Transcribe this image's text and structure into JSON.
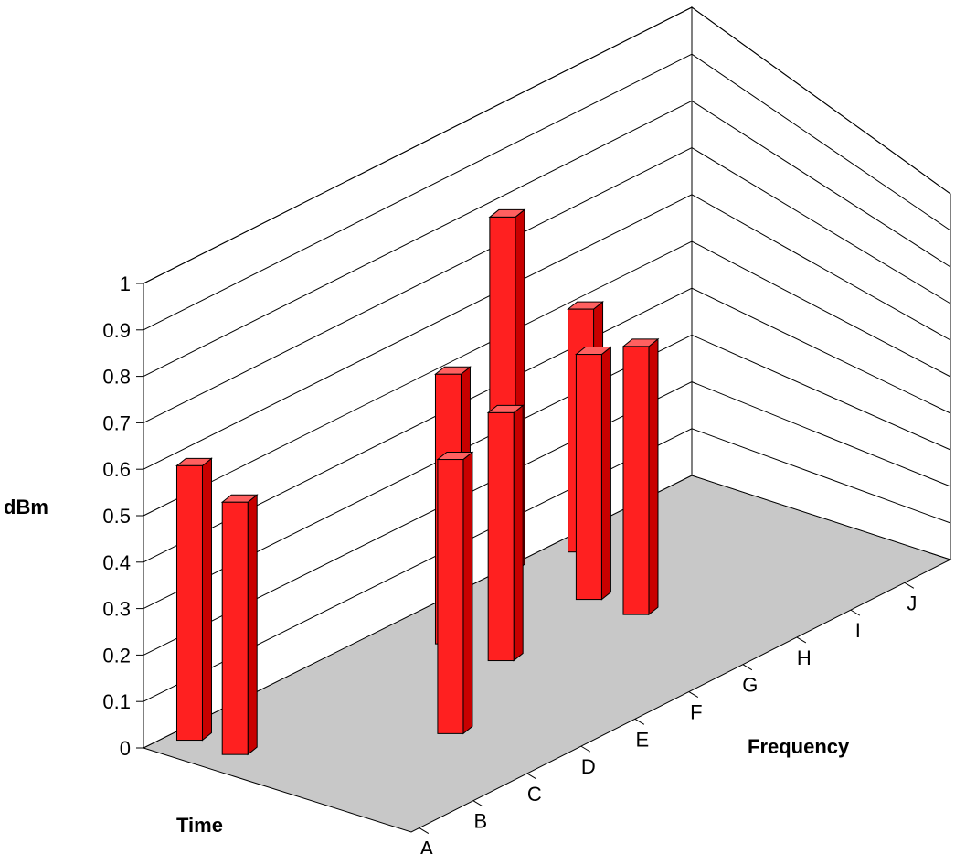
{
  "chart_data": {
    "type": "bar",
    "title": "",
    "ylabel": "dBm",
    "xlabel": "Frequency",
    "zlabel": "Time",
    "ylim": [
      0,
      1
    ],
    "yticks": [
      "0",
      "0.1",
      "0.2",
      "0.3",
      "0.4",
      "0.5",
      "0.6",
      "0.7",
      "0.8",
      "0.9",
      "1"
    ],
    "categories": [
      "A",
      "B",
      "C",
      "D",
      "E",
      "F",
      "G",
      "H",
      "I",
      "J"
    ],
    "bars": [
      {
        "category": "A",
        "depth": 0.76,
        "value": 0.55
      },
      {
        "category": "A",
        "depth": 0.93,
        "value": 0.6
      },
      {
        "category": "C",
        "depth": 0.36,
        "value": 0.6
      },
      {
        "category": "E",
        "depth": 0.58,
        "value": 0.55
      },
      {
        "category": "E",
        "depth": 0.78,
        "value": 0.6
      },
      {
        "category": "G",
        "depth": 0.48,
        "value": 0.6
      },
      {
        "category": "G",
        "depth": 0.66,
        "value": 0.55
      },
      {
        "category": "G",
        "depth": 0.99,
        "value": 0.8
      },
      {
        "category": "H",
        "depth": 0.9,
        "value": 0.55
      }
    ],
    "colors": {
      "bar_front": "#ff2020",
      "bar_side": "#c80000",
      "bar_top": "#ff6060",
      "floor": "#c8c8c8"
    },
    "grid": true
  }
}
